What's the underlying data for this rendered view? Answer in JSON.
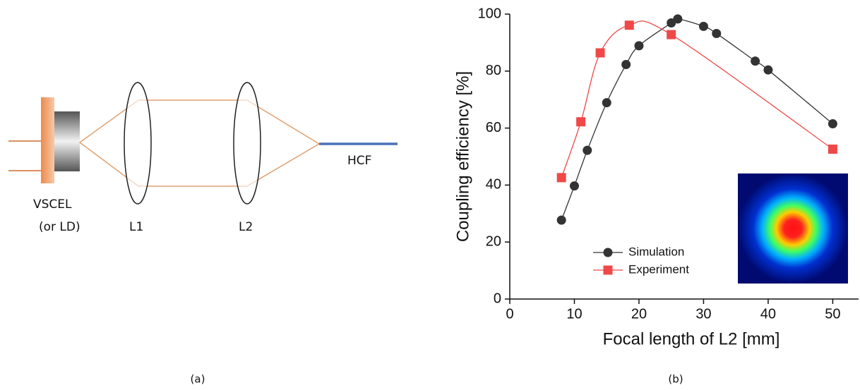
{
  "diagram": {
    "labels": {
      "source": "VSCEL",
      "source_alt": "(or LD)",
      "lens1": "L1",
      "lens2": "L2",
      "fiber": "HCF"
    }
  },
  "captions": [
    "(a)",
    "(b)"
  ],
  "chart_data": {
    "type": "line",
    "xlabel": "Focal length of L2 [mm]",
    "ylabel": "Coupling efficiency [%]",
    "xlim": [
      0,
      54
    ],
    "ylim": [
      0,
      100
    ],
    "xticks": [
      0,
      10,
      20,
      30,
      40,
      50
    ],
    "yticks": [
      0,
      20,
      40,
      60,
      80,
      100
    ],
    "legend": "lower center",
    "series": [
      {
        "name": "Simulation",
        "color": "#333333",
        "marker": "circle",
        "x": [
          8,
          10,
          12,
          15,
          18,
          20,
          25,
          26,
          30,
          32,
          38,
          40,
          50
        ],
        "values": [
          27.7,
          39.7,
          52.2,
          68.9,
          82.3,
          88.9,
          96.9,
          98.3,
          95.7,
          93.2,
          83.5,
          80.4,
          61.5
        ]
      },
      {
        "name": "Experiment",
        "color": "#f04848",
        "marker": "square",
        "x": [
          8,
          11,
          14,
          18.5,
          25,
          50
        ],
        "values": [
          42.6,
          62.2,
          86.4,
          96.1,
          92.8,
          52.6
        ]
      }
    ]
  }
}
